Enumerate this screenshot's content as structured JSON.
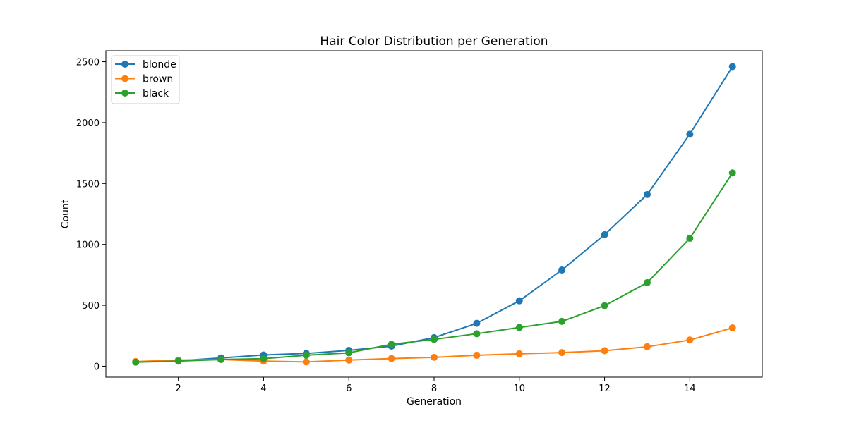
{
  "chart_data": {
    "type": "line",
    "title": "Hair Color Distribution per Generation",
    "xlabel": "Generation",
    "ylabel": "Count",
    "x": [
      1,
      2,
      3,
      4,
      5,
      6,
      7,
      8,
      9,
      10,
      11,
      12,
      13,
      14,
      15
    ],
    "xlim": [
      0.3,
      15.7
    ],
    "ylim": [
      -90,
      2590
    ],
    "xticks": [
      2,
      4,
      6,
      8,
      10,
      12,
      14
    ],
    "yticks": [
      0,
      500,
      1000,
      1500,
      2000,
      2500
    ],
    "grid": false,
    "legend_position": "top-left",
    "series": [
      {
        "name": "blonde",
        "color": "#1f77b4",
        "values": [
          35,
          45,
          68,
          92,
          105,
          130,
          165,
          235,
          352,
          537,
          790,
          1080,
          1410,
          1905,
          2460
        ]
      },
      {
        "name": "brown",
        "color": "#ff7f0e",
        "values": [
          38,
          50,
          55,
          42,
          35,
          50,
          63,
          73,
          90,
          102,
          112,
          127,
          160,
          215,
          315
        ]
      },
      {
        "name": "black",
        "color": "#2ca02c",
        "values": [
          33,
          42,
          55,
          62,
          90,
          110,
          180,
          220,
          267,
          318,
          368,
          497,
          686,
          1050,
          1587
        ]
      }
    ]
  }
}
